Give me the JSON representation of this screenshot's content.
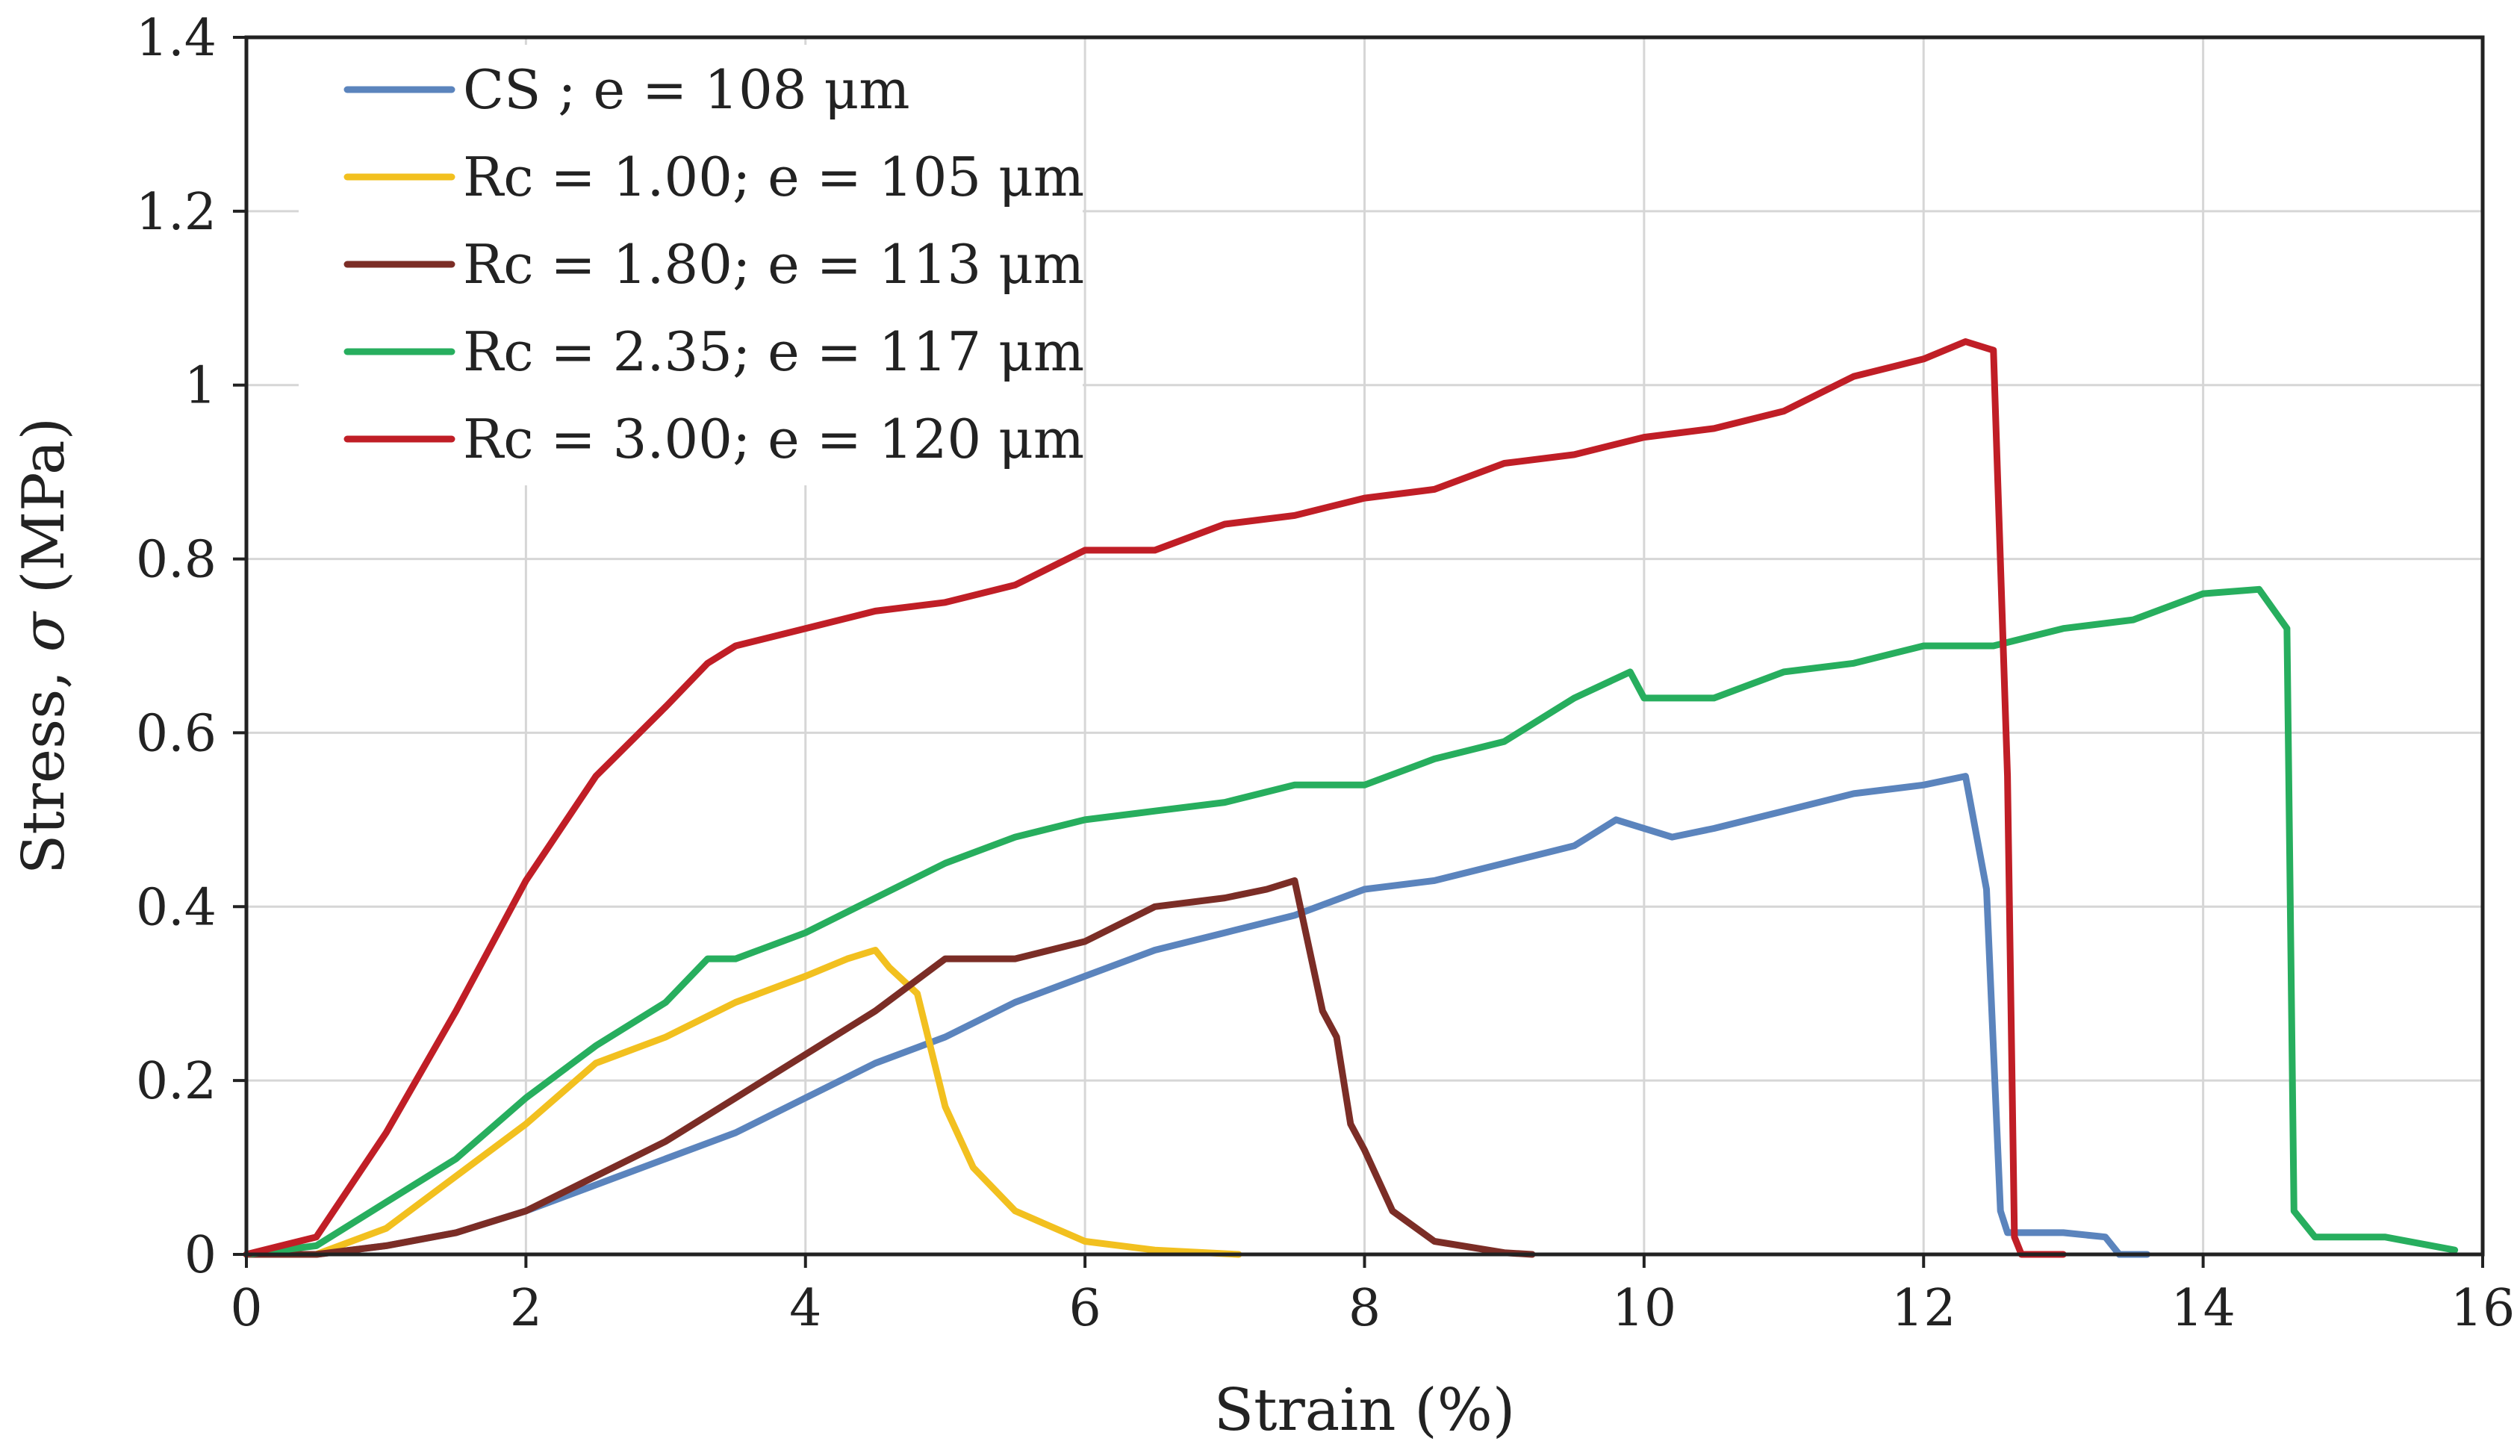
{
  "chart_data": {
    "type": "line",
    "title": "",
    "xlabel": "Strain (%)",
    "ylabel_parts": [
      "Stress, ",
      "σ",
      "  (MPa)"
    ],
    "xlim": [
      0,
      16
    ],
    "ylim": [
      0,
      1.4
    ],
    "xticks": [
      0,
      2,
      4,
      6,
      8,
      10,
      12,
      14,
      16
    ],
    "xtick_labels": [
      "0",
      "2",
      "4",
      "6",
      "8",
      "10",
      "12",
      "14",
      "16"
    ],
    "yticks": [
      0,
      0.2,
      0.4,
      0.6,
      0.8,
      1.0,
      1.2,
      1.4
    ],
    "ytick_labels": [
      "0",
      "0.2",
      "0.4",
      "0.6",
      "0.8",
      "1",
      "1.2",
      "1.4"
    ],
    "grid": true,
    "legend_position": "top-left",
    "series": [
      {
        "name": "CS ; e = 108 μm",
        "color": "#5B84BD",
        "x": [
          0,
          0.5,
          1.0,
          1.5,
          2.0,
          2.5,
          3.0,
          3.5,
          4.0,
          4.5,
          5.0,
          5.5,
          6.0,
          6.5,
          7.0,
          7.5,
          8.0,
          8.5,
          9.0,
          9.5,
          9.8,
          10.2,
          10.5,
          11.0,
          11.5,
          12.0,
          12.3,
          12.45,
          12.55,
          12.6,
          13.0,
          13.3,
          13.4,
          13.6
        ],
        "y": [
          0,
          0.0,
          0.01,
          0.025,
          0.05,
          0.08,
          0.11,
          0.14,
          0.18,
          0.22,
          0.25,
          0.29,
          0.32,
          0.35,
          0.37,
          0.39,
          0.42,
          0.43,
          0.45,
          0.47,
          0.5,
          0.48,
          0.49,
          0.51,
          0.53,
          0.54,
          0.55,
          0.42,
          0.05,
          0.025,
          0.025,
          0.02,
          0.0,
          0.0
        ]
      },
      {
        "name": "Rc = 1.00; e = 105 μm",
        "color": "#F2C01F",
        "x": [
          0,
          0.5,
          1.0,
          1.5,
          2.0,
          2.5,
          3.0,
          3.5,
          4.0,
          4.3,
          4.5,
          4.6,
          4.8,
          5.0,
          5.2,
          5.5,
          6.0,
          6.5,
          7.1
        ],
        "y": [
          0,
          0.0,
          0.03,
          0.09,
          0.15,
          0.22,
          0.25,
          0.29,
          0.32,
          0.34,
          0.35,
          0.33,
          0.3,
          0.17,
          0.1,
          0.05,
          0.015,
          0.005,
          0.0
        ]
      },
      {
        "name": "Rc = 1.80; e = 113 μm",
        "color": "#7B2D26",
        "x": [
          0,
          0.5,
          1.0,
          1.5,
          2.0,
          2.5,
          3.0,
          3.5,
          4.0,
          4.5,
          5.0,
          5.5,
          6.0,
          6.5,
          7.0,
          7.3,
          7.5,
          7.7,
          7.8,
          7.9,
          8.0,
          8.2,
          8.5,
          9.0,
          9.2
        ],
        "y": [
          0,
          0.0,
          0.01,
          0.025,
          0.05,
          0.09,
          0.13,
          0.18,
          0.23,
          0.28,
          0.34,
          0.34,
          0.36,
          0.4,
          0.41,
          0.42,
          0.43,
          0.28,
          0.25,
          0.15,
          0.12,
          0.05,
          0.015,
          0.002,
          0.0
        ]
      },
      {
        "name": "Rc = 2.35; e = 117 μm",
        "color": "#27AE5E",
        "x": [
          0,
          0.5,
          1.0,
          1.5,
          2.0,
          2.5,
          3.0,
          3.3,
          3.5,
          4.0,
          4.5,
          5.0,
          5.5,
          6.0,
          6.5,
          7.0,
          7.5,
          8.0,
          8.5,
          9.0,
          9.5,
          9.9,
          10.0,
          10.5,
          11.0,
          11.5,
          12.0,
          12.5,
          13.0,
          13.5,
          14.0,
          14.4,
          14.6,
          14.65,
          14.8,
          15.3,
          15.8
        ],
        "y": [
          0,
          0.01,
          0.06,
          0.11,
          0.18,
          0.24,
          0.29,
          0.34,
          0.34,
          0.37,
          0.41,
          0.45,
          0.48,
          0.5,
          0.51,
          0.52,
          0.54,
          0.54,
          0.57,
          0.59,
          0.64,
          0.67,
          0.64,
          0.64,
          0.67,
          0.68,
          0.7,
          0.7,
          0.72,
          0.73,
          0.76,
          0.765,
          0.72,
          0.05,
          0.02,
          0.02,
          0.005
        ]
      },
      {
        "name": "Rc = 3.00; e = 120 μm",
        "color": "#C01E26",
        "x": [
          0,
          0.5,
          1.0,
          1.5,
          2.0,
          2.5,
          3.0,
          3.3,
          3.5,
          4.0,
          4.5,
          5.0,
          5.5,
          6.0,
          6.5,
          7.0,
          7.5,
          8.0,
          8.5,
          9.0,
          9.5,
          10.0,
          10.5,
          11.0,
          11.5,
          12.0,
          12.3,
          12.5,
          12.6,
          12.65,
          12.7,
          13.0
        ],
        "y": [
          0,
          0.02,
          0.14,
          0.28,
          0.43,
          0.55,
          0.63,
          0.68,
          0.7,
          0.72,
          0.74,
          0.75,
          0.77,
          0.81,
          0.81,
          0.84,
          0.85,
          0.87,
          0.88,
          0.91,
          0.92,
          0.94,
          0.95,
          0.97,
          1.01,
          1.03,
          1.05,
          1.04,
          0.55,
          0.02,
          0.0,
          0.0
        ]
      }
    ]
  }
}
